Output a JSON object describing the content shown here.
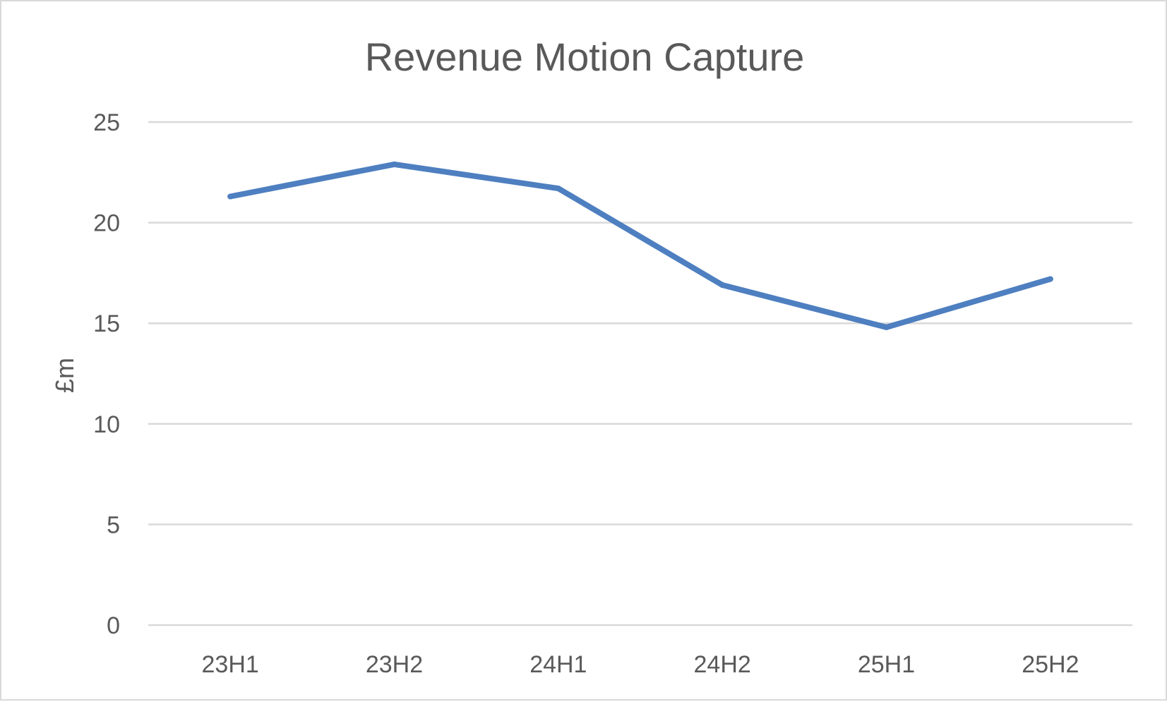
{
  "chart_data": {
    "type": "line",
    "title": "Revenue Motion Capture",
    "xlabel": "",
    "ylabel": "£m",
    "categories": [
      "23H1",
      "23H2",
      "24H1",
      "24H2",
      "25H1",
      "25H2"
    ],
    "series": [
      {
        "values": [
          21.3,
          22.9,
          21.7,
          16.9,
          14.8,
          17.2
        ],
        "color": "#4e7fc0"
      }
    ],
    "ylim": [
      0,
      25
    ],
    "yticks": [
      0,
      5,
      10,
      15,
      20,
      25
    ],
    "grid": true,
    "legend": "none"
  }
}
